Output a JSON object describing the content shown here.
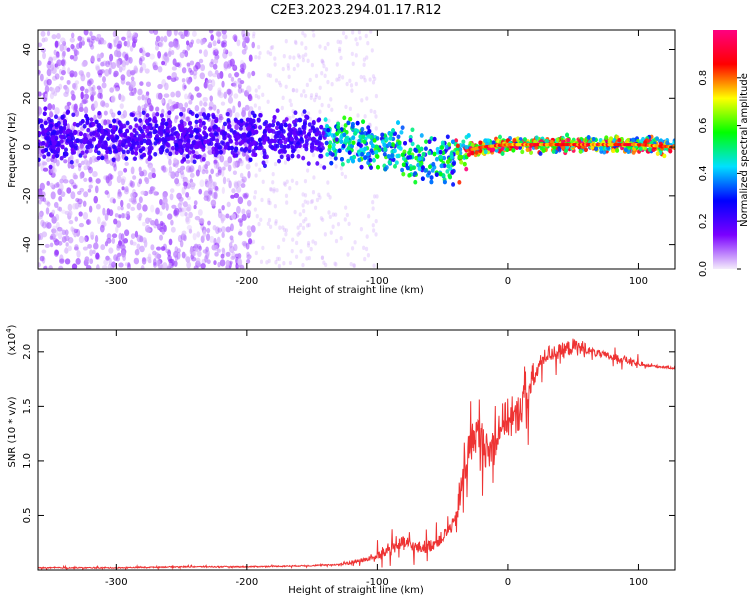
{
  "title": "C2E3.2023.294.01.17.R12",
  "chart_data": [
    {
      "type": "heatmap",
      "xlabel": "Height of straight line (km)",
      "ylabel": "Frequency (Hz)",
      "xlim": [
        -360,
        128
      ],
      "ylim": [
        -50,
        48
      ],
      "x_ticks": [
        -300,
        -200,
        -100,
        0,
        100
      ],
      "y_ticks": [
        -40,
        -20,
        0,
        20,
        40
      ],
      "colorbar": {
        "label": "Normalized spectral amplitude",
        "range": [
          0.0,
          1.0
        ],
        "ticks": [
          "0.0",
          "0.2",
          "0.4",
          "0.6",
          "0.8"
        ],
        "colormap": [
          "#f4ecfb",
          "#7a00ff",
          "#0000ff",
          "#00e0ff",
          "#00ff00",
          "#ffff00",
          "#ff0000",
          "#ff0080"
        ]
      },
      "centerline": {
        "x": [
          -360,
          -300,
          -250,
          -200,
          -150,
          -120,
          -100,
          -80,
          -60,
          -45,
          -35,
          -20,
          0,
          50,
          100,
          128
        ],
        "y": [
          4,
          4,
          4,
          5,
          4,
          3,
          0,
          -3,
          -6,
          -6,
          -2,
          0,
          1,
          1,
          1,
          0
        ]
      }
    },
    {
      "type": "line",
      "xlabel": "Height of straight line (km)",
      "ylabel": "SNR (10 * v/v)",
      "y_multiplier": "(x10",
      "y_multiplier_exp": "4",
      "y_multiplier_close": ")",
      "xlim": [
        -360,
        128
      ],
      "ylim": [
        0,
        2.2
      ],
      "x_ticks": [
        -300,
        -200,
        -100,
        0,
        100
      ],
      "y_ticks": [
        0.5,
        1.0,
        1.5,
        2.0
      ],
      "y_tick_labels": [
        "0.5",
        "1.0",
        "1.5",
        "2.0"
      ],
      "color": "#ee3333",
      "series": [
        {
          "x": [
            -360,
            -300,
            -250,
            -200,
            -150,
            -130,
            -115,
            -100,
            -90,
            -80,
            -70,
            -60,
            -50,
            -40,
            -35,
            -30,
            -25,
            -20,
            -15,
            -10,
            -5,
            0,
            5,
            10,
            15,
            20,
            25,
            30,
            40,
            50,
            60,
            70,
            80,
            90,
            95,
            100,
            110,
            120,
            128
          ],
          "y": [
            0.02,
            0.02,
            0.03,
            0.03,
            0.04,
            0.05,
            0.08,
            0.12,
            0.2,
            0.25,
            0.2,
            0.22,
            0.3,
            0.45,
            0.8,
            1.1,
            1.25,
            1.2,
            1.05,
            1.2,
            1.35,
            1.4,
            1.35,
            1.5,
            1.6,
            1.75,
            1.9,
            1.98,
            2.0,
            2.05,
            2.02,
            1.98,
            1.95,
            1.93,
            1.9,
            1.88,
            1.87,
            1.86,
            1.85
          ]
        }
      ]
    }
  ]
}
